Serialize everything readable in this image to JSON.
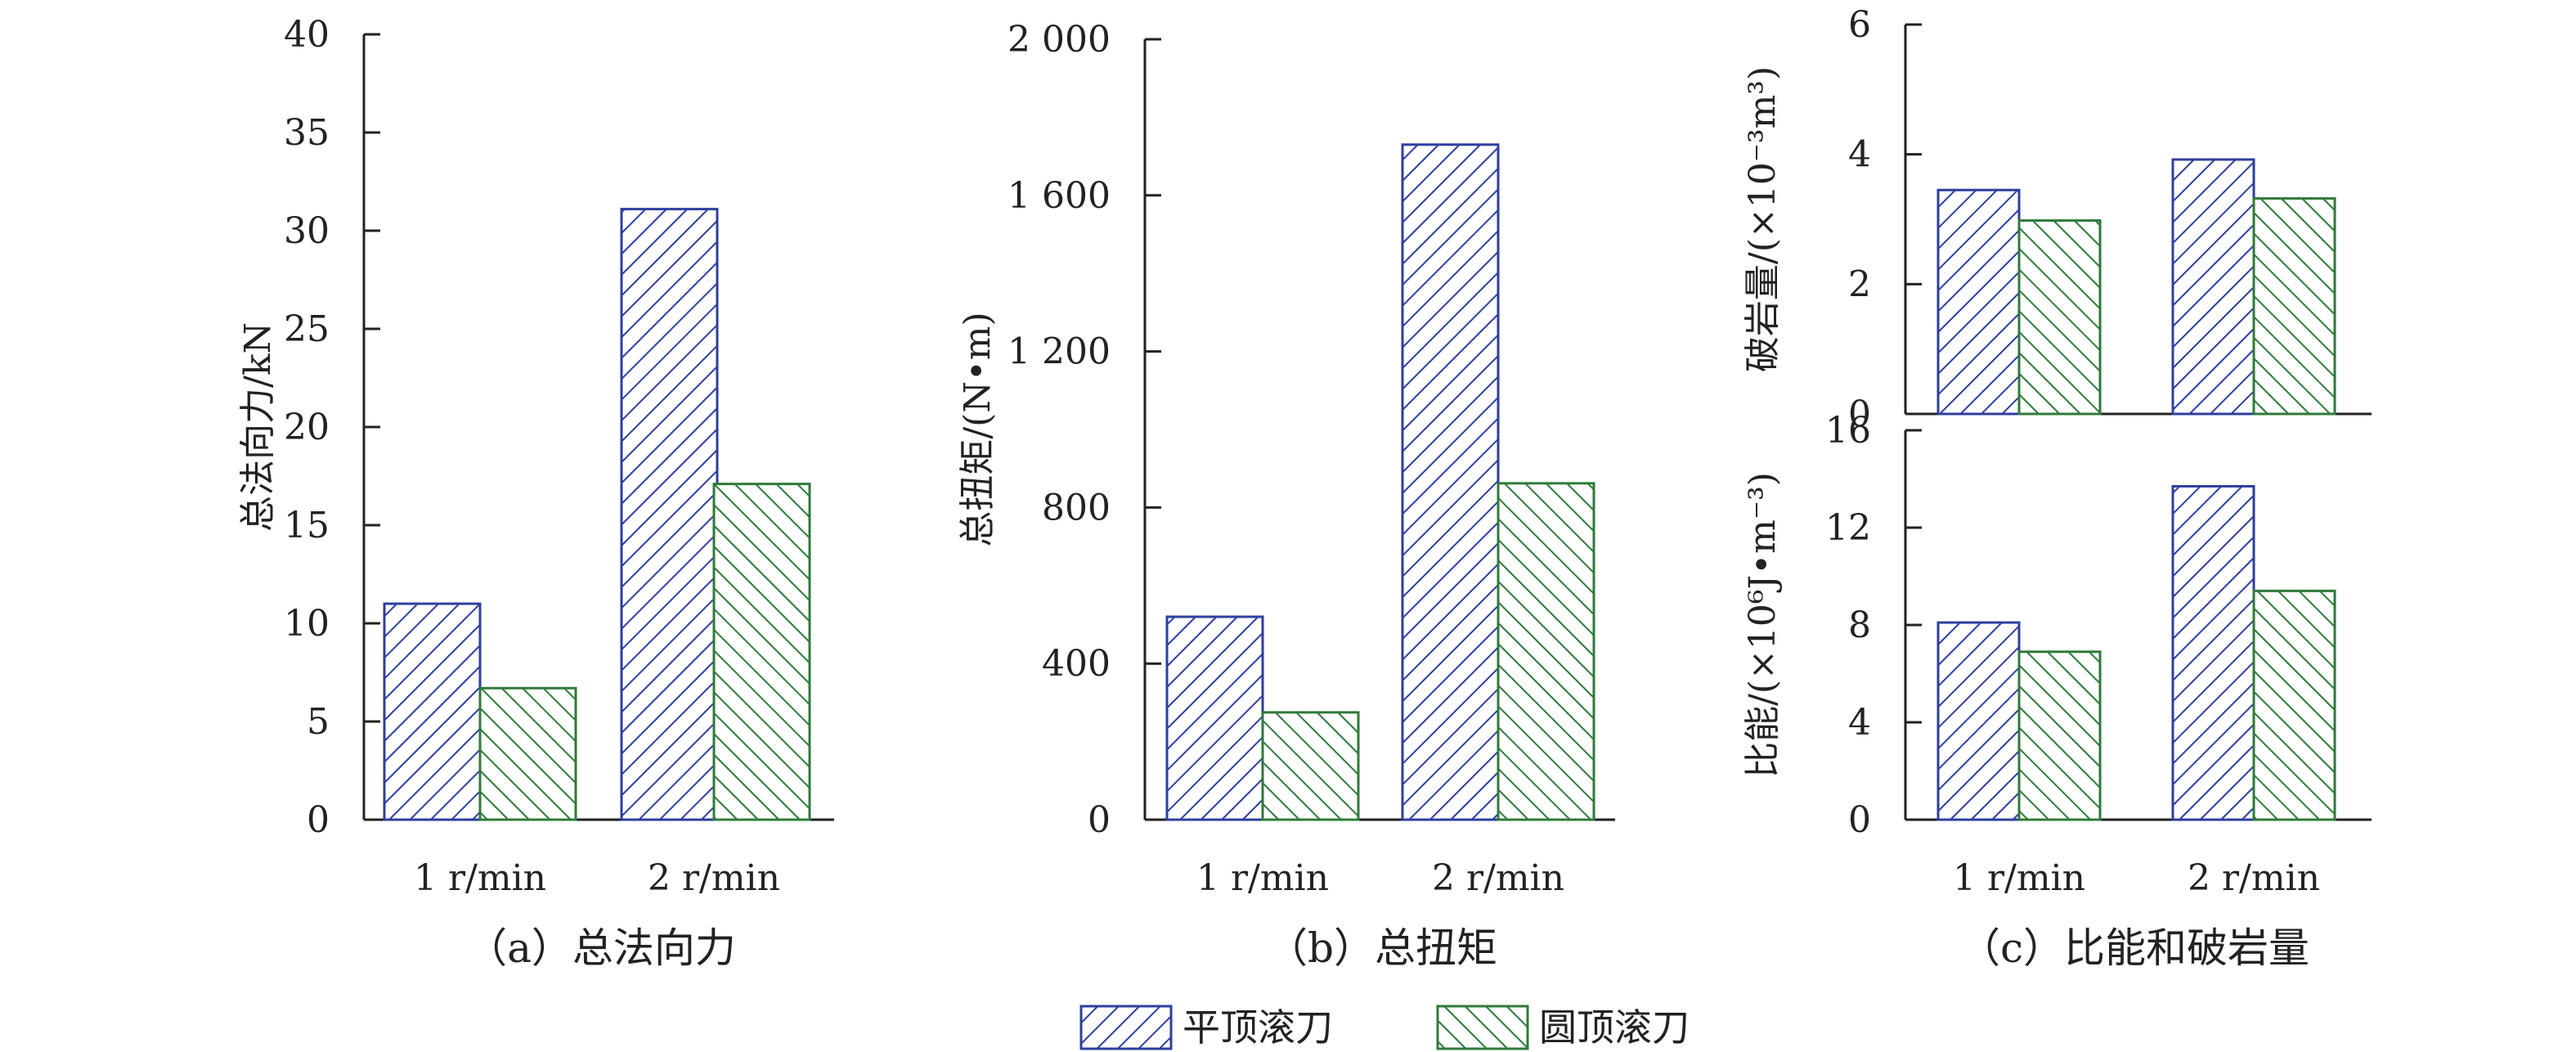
{
  "colors": {
    "series1": "#2e3f9e",
    "series2": "#2f7a3a",
    "axis": "#222222"
  },
  "legend": {
    "items": [
      "平顶滚刀",
      "圆顶滚刀"
    ]
  },
  "chart_data": [
    {
      "id": "a",
      "type": "bar",
      "caption": "（a）总法向力",
      "ylabel": "总法向力/kN",
      "categories": [
        "1 r/min",
        "2 r/min"
      ],
      "ylim": [
        0,
        40
      ],
      "yticks": [
        0,
        5,
        10,
        15,
        20,
        25,
        30,
        35,
        40
      ],
      "ytick_labels": [
        "0",
        "5",
        "10",
        "15",
        "20",
        "25",
        "30",
        "35",
        "40"
      ],
      "series": [
        {
          "name": "平顶滚刀",
          "values": [
            11.0,
            31.1
          ]
        },
        {
          "name": "圆顶滚刀",
          "values": [
            6.7,
            17.1
          ]
        }
      ]
    },
    {
      "id": "b",
      "type": "bar",
      "caption": "（b）总扭矩",
      "ylabel": "总扭矩/(N•m)",
      "categories": [
        "1 r/min",
        "2 r/min"
      ],
      "ylim": [
        0,
        2000
      ],
      "yticks": [
        0,
        400,
        800,
        1200,
        1600,
        2000
      ],
      "ytick_labels": [
        "0",
        "400",
        "800",
        "1 200",
        "1 600",
        "2 000"
      ],
      "series": [
        {
          "name": "平顶滚刀",
          "values": [
            520,
            1730
          ]
        },
        {
          "name": "圆顶滚刀",
          "values": [
            275,
            862
          ]
        }
      ]
    },
    {
      "id": "c-top",
      "type": "bar",
      "caption": "（c）比能和破岩量",
      "ylabel": "破岩量/(×10⁻³m³)",
      "categories": [
        "1 r/min",
        "2 r/min"
      ],
      "ylim": [
        0,
        6
      ],
      "yticks": [
        0,
        2,
        4,
        6
      ],
      "ytick_labels": [
        "0",
        "2",
        "4",
        "6"
      ],
      "series": [
        {
          "name": "平顶滚刀",
          "values": [
            3.45,
            3.92
          ]
        },
        {
          "name": "圆顶滚刀",
          "values": [
            2.98,
            3.32
          ]
        }
      ]
    },
    {
      "id": "c-bottom",
      "type": "bar",
      "ylabel": "比能/(×10⁶J•m⁻³)",
      "categories": [
        "1 r/min",
        "2 r/min"
      ],
      "ylim": [
        0,
        16
      ],
      "yticks": [
        0,
        4,
        8,
        12,
        16
      ],
      "ytick_labels": [
        "0",
        "4",
        "8",
        "12",
        "16"
      ],
      "series": [
        {
          "name": "平顶滚刀",
          "values": [
            8.1,
            13.7
          ]
        },
        {
          "name": "圆顶滚刀",
          "values": [
            6.9,
            9.4
          ]
        }
      ]
    }
  ]
}
